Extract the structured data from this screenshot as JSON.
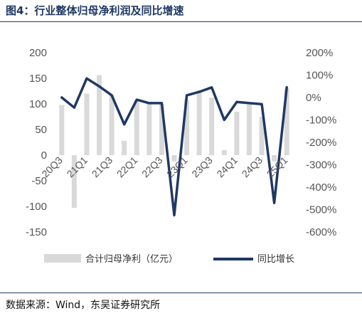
{
  "title": "图4：行业整体归母净利润及同比增速",
  "source": "数据来源：Wind，东吴证券研究所",
  "chart_data": {
    "type": "bar+line",
    "categories": [
      "20Q3",
      "20Q4",
      "21Q1",
      "21Q2",
      "21Q3",
      "21Q4",
      "22Q1",
      "22Q2",
      "22Q3",
      "22Q4",
      "23Q1",
      "23Q2",
      "23Q3",
      "23Q4",
      "24Q1",
      "24Q2",
      "24Q3",
      "24Q4",
      "25Q1"
    ],
    "x_tick_labels": [
      "20Q3",
      "21Q1",
      "21Q3",
      "22Q1",
      "22Q3",
      "23Q1",
      "23Q3",
      "24Q1",
      "24Q3",
      "25Q1"
    ],
    "series": [
      {
        "name": "合计归母净利（亿元）",
        "type": "bar",
        "axis": "left",
        "color": "#d9d9d9",
        "values": [
          98,
          -103,
          120,
          156,
          118,
          28,
          108,
          102,
          100,
          -12,
          108,
          127,
          112,
          10,
          85,
          99,
          75,
          -12,
          130
        ]
      },
      {
        "name": "同比增长",
        "type": "line",
        "axis": "right",
        "color": "#1f3864",
        "values": [
          0,
          -45,
          85,
          50,
          10,
          -120,
          -10,
          -25,
          -25,
          -525,
          10,
          25,
          45,
          -100,
          -20,
          -25,
          -30,
          -470,
          45
        ]
      }
    ],
    "left_axis": {
      "min": -150,
      "max": 200,
      "ticks": [
        -150,
        -100,
        -50,
        0,
        50,
        100,
        150,
        200
      ]
    },
    "right_axis": {
      "min": -600,
      "max": 200,
      "ticks": [
        "-600%",
        "-500%",
        "-400%",
        "-300%",
        "-200%",
        "-100%",
        "0%",
        "100%",
        "200%"
      ]
    },
    "legend_position": "bottom",
    "grid": false
  }
}
